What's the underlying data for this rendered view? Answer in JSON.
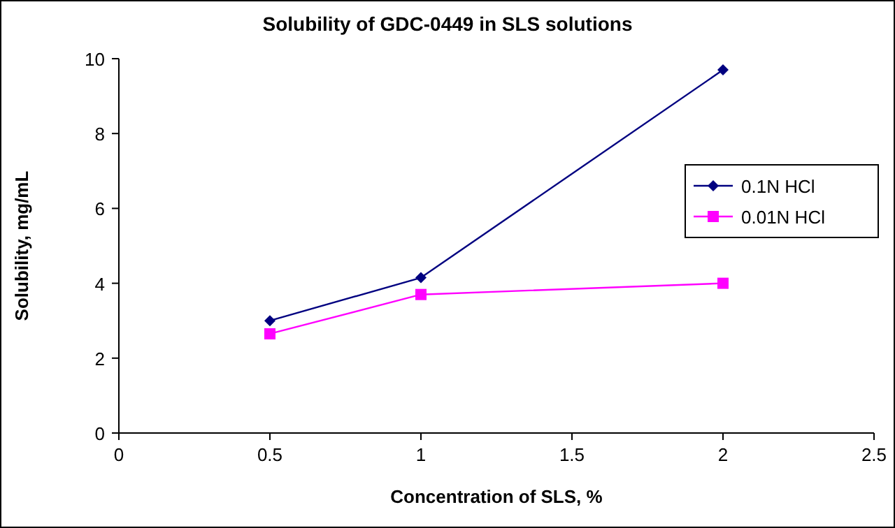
{
  "chart_data": {
    "type": "line",
    "title": "Solubility of GDC-0449 in SLS solutions",
    "xlabel": "Concentration of SLS, %",
    "ylabel": "Solubility, mg/mL",
    "x": [
      0.5,
      1,
      2
    ],
    "xlim": [
      0,
      2.5
    ],
    "xticks": [
      0,
      0.5,
      1,
      1.5,
      2,
      2.5
    ],
    "ylim": [
      0,
      10
    ],
    "yticks": [
      0,
      2,
      4,
      6,
      8,
      10
    ],
    "grid": false,
    "legend": "right",
    "line_style": "solid",
    "series": [
      {
        "name": "0.1N HCl",
        "color": "#000080",
        "marker": "diamond",
        "values": [
          3.0,
          4.15,
          9.7
        ]
      },
      {
        "name": "0.01N HCl",
        "color": "#ff00ff",
        "marker": "square",
        "values": [
          2.65,
          3.7,
          4.0
        ]
      }
    ]
  }
}
